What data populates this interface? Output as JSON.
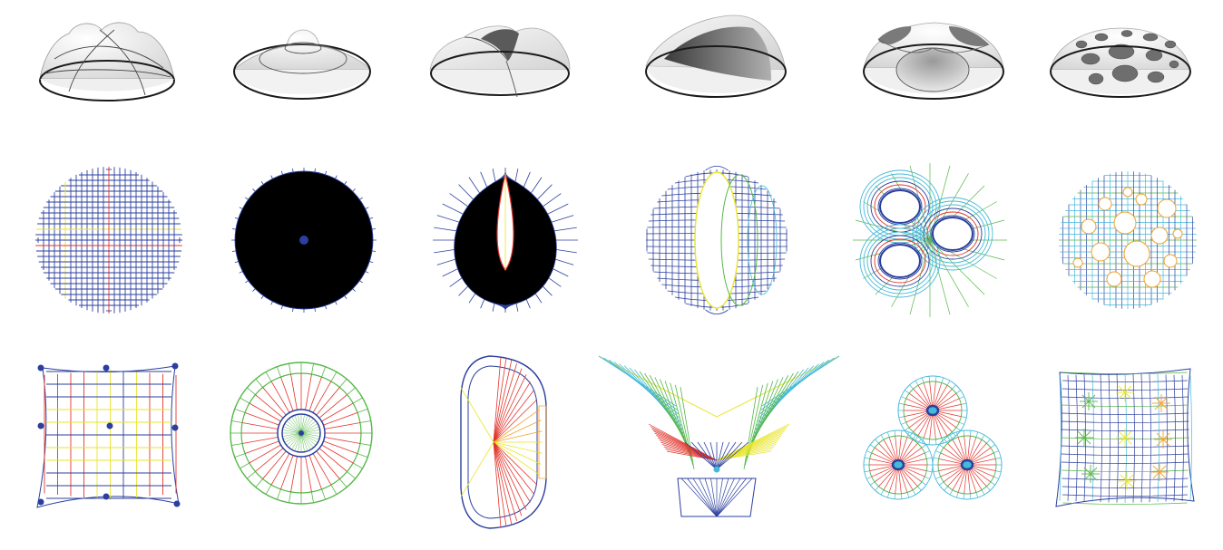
{
  "figure": {
    "columns": 6,
    "rows": [
      {
        "id": "shell-renderings",
        "items": [
          "cross-vault-dome",
          "stepped-dome",
          "pinched-dome",
          "scooped-dome",
          "three-opening-dome",
          "perforated-dome"
        ]
      },
      {
        "id": "plan-meshes",
        "items": [
          "grid-mesh",
          "radial-mesh",
          "teardrop-hole-mesh",
          "elliptical-hole-mesh",
          "three-hole-mesh",
          "perforated-mesh"
        ]
      },
      {
        "id": "force-networks",
        "items": [
          "square-network",
          "ring-network",
          "stadium-network",
          "butterfly-network",
          "three-lobe-network",
          "square-star-network"
        ]
      }
    ]
  },
  "colors": {
    "blue": "#2b3f9f",
    "red": "#e2342b",
    "yellow": "#e9e52b",
    "green": "#55b848",
    "cyan": "#45b9d8",
    "orange": "#f2a12a",
    "shell_light": "#f4f4f4",
    "shell_edge": "#1a1a1a",
    "hole_dark": "#6e6e6e"
  }
}
